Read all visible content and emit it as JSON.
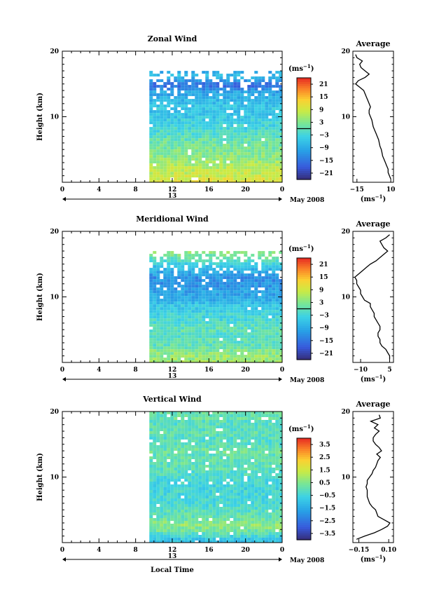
{
  "chart_data": [
    {
      "type": "heatmap",
      "title": "Zonal Wind",
      "ylabel": "Height (km)",
      "xlabel": "",
      "x_ticks": [
        "0",
        "4",
        "8",
        "12",
        "16",
        "20",
        "0"
      ],
      "y_ticks": [
        "10",
        "20"
      ],
      "date_label": "13",
      "month_label": "May 2008",
      "data_start_hour": 9.5,
      "data_top_km": 17,
      "colorbar": {
        "unit": "(ms",
        "unit_exp": "−1",
        "unit_close": ")",
        "ticks": [
          "21",
          "15",
          "9",
          "3",
          "−3",
          "−9",
          "−15",
          "−21"
        ],
        "range": [
          -24,
          24
        ]
      },
      "profile": {
        "title": "Average",
        "x_ticks": [
          "−15",
          "10"
        ],
        "xlim": [
          -18,
          12
        ],
        "unit": "(ms",
        "unit_exp": "−1",
        "unit_close": ")",
        "height": [
          0.5,
          1,
          1.5,
          2,
          2.5,
          3,
          3.5,
          4,
          4.5,
          5,
          5.5,
          6,
          6.5,
          7,
          7.5,
          8,
          8.5,
          9,
          9.5,
          10,
          10.5,
          11,
          11.5,
          12,
          12.5,
          13,
          13.5,
          14,
          14.5,
          15,
          15.5,
          16,
          16.5,
          17,
          17.5,
          18,
          18.5,
          19,
          19.5
        ],
        "values": [
          10,
          9,
          8,
          8,
          7,
          6,
          5,
          4,
          3.5,
          3,
          2,
          1.5,
          1,
          0,
          -1,
          -2,
          -3,
          -3.5,
          -4,
          -5,
          -6,
          -6,
          -5,
          -6,
          -7,
          -8,
          -9,
          -10,
          -13,
          -16,
          -14,
          -9,
          -6,
          -9,
          -12,
          -13,
          -11,
          -15,
          -16
        ]
      }
    },
    {
      "type": "heatmap",
      "title": "Meridional Wind",
      "ylabel": "Height (km)",
      "xlabel": "",
      "x_ticks": [
        "0",
        "4",
        "8",
        "12",
        "16",
        "20",
        "0"
      ],
      "y_ticks": [
        "10",
        "20"
      ],
      "date_label": "13",
      "month_label": "May 2008",
      "data_start_hour": 9.5,
      "data_top_km": 17,
      "colorbar": {
        "unit": "(ms",
        "unit_exp": "−1",
        "unit_close": ")",
        "ticks": [
          "21",
          "15",
          "9",
          "3",
          "−3",
          "−9",
          "−15",
          "−21"
        ],
        "range": [
          -24,
          24
        ]
      },
      "profile": {
        "title": "Average",
        "x_ticks": [
          "−10",
          "5"
        ],
        "xlim": [
          -14,
          7
        ],
        "unit": "(ms",
        "unit_exp": "−1",
        "unit_close": ")",
        "height": [
          0.5,
          1,
          1.5,
          2,
          2.5,
          3,
          3.5,
          4,
          4.5,
          5,
          5.5,
          6,
          6.5,
          7,
          7.5,
          8,
          8.5,
          9,
          9.5,
          10,
          10.5,
          11,
          11.5,
          12,
          12.5,
          13,
          13.5,
          14,
          14.5,
          15,
          15.5,
          16,
          16.5,
          17,
          17.5,
          18,
          18.5,
          19,
          19.5
        ],
        "values": [
          5,
          5,
          4,
          3,
          1,
          0,
          0,
          -1,
          -1,
          0,
          0,
          -1,
          -2,
          -3,
          -3,
          -4,
          -5,
          -5,
          -8,
          -9,
          -10,
          -10,
          -11,
          -12,
          -12,
          -13,
          -11,
          -9,
          -7,
          -5,
          -2,
          0,
          2,
          4,
          2,
          1,
          0,
          3,
          5
        ]
      }
    },
    {
      "type": "heatmap",
      "title": "Vertical Wind",
      "ylabel": "Height (km)",
      "xlabel": "Local Time",
      "x_ticks": [
        "0",
        "4",
        "8",
        "12",
        "16",
        "20",
        "0"
      ],
      "y_ticks": [
        "10",
        "20"
      ],
      "date_label": "13",
      "month_label": "May 2008",
      "data_start_hour": 9.5,
      "data_top_km": 20,
      "colorbar": {
        "unit": "(ms",
        "unit_exp": "−1",
        "unit_close": ")",
        "ticks": [
          "3.5",
          "2.5",
          "1.5",
          "0.5",
          "−0.5",
          "−1.5",
          "−2.5",
          "−3.5"
        ],
        "range": [
          -4,
          4
        ]
      },
      "profile": {
        "title": "Average",
        "x_ticks": [
          "−0.15",
          "0.10"
        ],
        "xlim": [
          -0.2,
          0.14
        ],
        "unit": "(ms",
        "unit_exp": "−1",
        "unit_close": ")",
        "height": [
          0.5,
          1,
          1.5,
          2,
          2.5,
          3,
          3.5,
          4,
          4.5,
          5,
          5.5,
          6,
          6.5,
          7,
          7.5,
          8,
          8.5,
          9,
          9.5,
          10,
          10.5,
          11,
          11.5,
          12,
          12.5,
          13,
          13.5,
          14,
          14.5,
          15,
          15.5,
          16,
          16.5,
          17,
          17.5,
          18,
          18.5,
          19,
          19.5
        ],
        "values": [
          -0.17,
          -0.1,
          -0.02,
          0.04,
          0.09,
          0.11,
          0.06,
          0.01,
          0.0,
          -0.01,
          -0.04,
          -0.06,
          -0.07,
          -0.08,
          -0.08,
          -0.08,
          -0.09,
          -0.08,
          -0.08,
          -0.06,
          -0.04,
          -0.03,
          -0.01,
          0.0,
          0.01,
          0.03,
          0.0,
          0.04,
          0.02,
          -0.01,
          -0.03,
          -0.03,
          -0.01,
          0.02,
          -0.02,
          0.01,
          -0.05,
          0.03,
          0.02
        ]
      }
    }
  ]
}
